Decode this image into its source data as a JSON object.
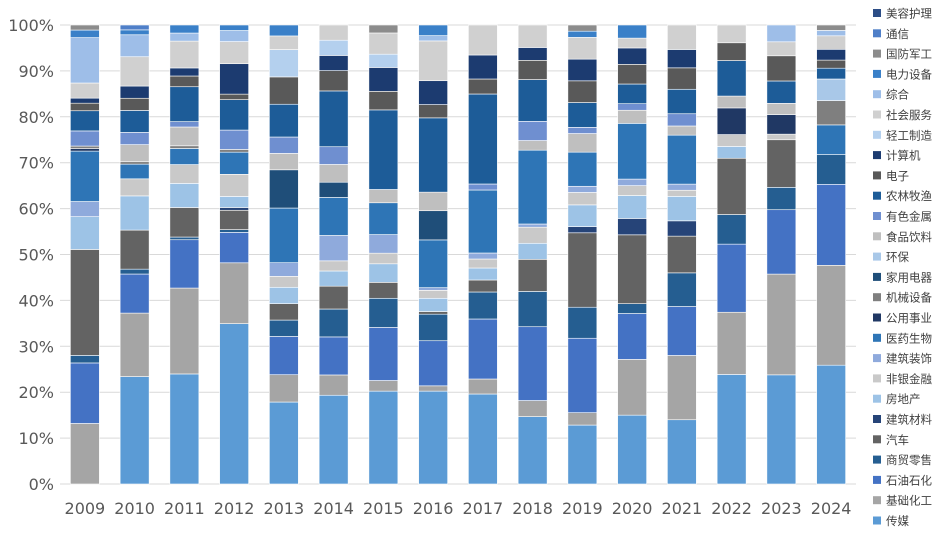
{
  "chart_data": {
    "type": "bar",
    "stacked": true,
    "percent": true,
    "categories": [
      "2009",
      "2010",
      "2011",
      "2012",
      "2013",
      "2014",
      "2015",
      "2016",
      "2017",
      "2018",
      "2019",
      "2020",
      "2021",
      "2022",
      "2023",
      "2024"
    ],
    "ylim": [
      0,
      100
    ],
    "yticks": [
      "0%",
      "10%",
      "20%",
      "30%",
      "40%",
      "50%",
      "60%",
      "70%",
      "80%",
      "90%",
      "100%"
    ],
    "legend_position": "right",
    "series": [
      {
        "name": "传媒",
        "color": "#5b9bd5",
        "values": [
          0,
          22,
          20.5,
          29,
          15,
          17.5,
          17.5,
          17.5,
          15,
          10.5,
          9.5,
          10.5,
          10.5,
          18.5,
          19.5,
          22
        ]
      },
      {
        "name": "基础化工",
        "color": "#a5a5a5",
        "values": [
          12,
          13,
          16,
          11,
          5,
          4,
          2,
          1,
          2.5,
          2.5,
          2,
          8.5,
          10.5,
          10.5,
          18,
          18.5
        ]
      },
      {
        "name": "石油石化",
        "color": "#4472c4",
        "values": [
          12,
          8,
          9,
          5.5,
          7,
          7.5,
          10,
          8.5,
          10,
          11.5,
          12,
          7,
          8,
          11.5,
          11.5,
          15
        ]
      },
      {
        "name": "商贸零售",
        "color": "#255e91",
        "values": [
          1.5,
          1,
          0.5,
          0.5,
          3,
          5.5,
          5.5,
          5,
          4.5,
          5.5,
          5,
          1.5,
          5.5,
          5,
          4,
          5.5
        ]
      },
      {
        "name": "汽车",
        "color": "#636363",
        "values": [
          21,
          8,
          5.5,
          3.5,
          3,
          4.5,
          3,
          0.5,
          2,
          5,
          12,
          10.5,
          6,
          9.5,
          8.5,
          0
        ]
      },
      {
        "name": "建筑材料",
        "color": "#264478",
        "values": [
          0,
          0,
          0,
          0.5,
          0,
          0,
          0,
          0,
          0,
          0,
          1,
          2.5,
          2.5,
          0,
          0,
          0
        ]
      },
      {
        "name": "房地产",
        "color": "#9dc3e6",
        "values": [
          6.5,
          7,
          4.5,
          2,
          3,
          3,
          3.5,
          2.5,
          2,
          2.5,
          3.5,
          3.5,
          4,
          2,
          0,
          0
        ]
      },
      {
        "name": "非银金融",
        "color": "#c9c9c9",
        "values": [
          0,
          3.5,
          3.5,
          4,
          2,
          2,
          2,
          1.5,
          1.5,
          2.5,
          2,
          1.5,
          1,
          2,
          1,
          0
        ]
      },
      {
        "name": "建筑装饰",
        "color": "#8faadc",
        "values": [
          3,
          0,
          0,
          0,
          2.5,
          5,
          3.5,
          0.5,
          1,
          0.5,
          1,
          1,
          1,
          0,
          0,
          0
        ]
      },
      {
        "name": "医药生物",
        "color": "#2e75b6",
        "values": [
          10,
          3,
          3,
          4,
          10,
          7.5,
          6,
          9,
          10.5,
          11.5,
          5.5,
          8.5,
          8,
          0,
          0,
          5.5
        ]
      },
      {
        "name": "公用事业",
        "color": "#203864",
        "values": [
          0.5,
          0,
          0,
          0,
          0,
          0,
          0,
          0,
          0,
          0,
          0,
          0,
          0,
          4.5,
          3.5,
          0
        ]
      },
      {
        "name": "机械设备",
        "color": "#7f7f7f",
        "values": [
          0.5,
          0.5,
          0.5,
          0.5,
          0,
          0,
          0,
          0,
          0,
          0,
          0,
          0,
          0,
          0,
          0,
          4.5
        ]
      },
      {
        "name": "家用电器",
        "color": "#1f4e79",
        "values": [
          0,
          0,
          0,
          0,
          7,
          3,
          0,
          5.5,
          0,
          0,
          0,
          0,
          0,
          0,
          0,
          0
        ]
      },
      {
        "name": "环保",
        "color": "#a9c8e8",
        "values": [
          0,
          0,
          0,
          0,
          0,
          0,
          0,
          0,
          0,
          0,
          0,
          0,
          0,
          0,
          0,
          4
        ]
      },
      {
        "name": "食品饮料",
        "color": "#bfbfbf",
        "values": [
          0,
          3.5,
          3.5,
          0,
          3,
          3.5,
          2.5,
          3.5,
          0,
          1.5,
          3,
          2,
          1.5,
          2,
          2,
          0
        ]
      },
      {
        "name": "有色金属",
        "color": "#6f8fd0",
        "values": [
          3,
          2.5,
          1,
          3.5,
          3,
          3.5,
          0,
          0,
          1,
          3,
          1,
          1,
          2,
          0,
          0,
          0
        ]
      },
      {
        "name": "农林牧渔",
        "color": "#1d5c98",
        "values": [
          4,
          4.5,
          6.5,
          5.5,
          6,
          11,
          15,
          14,
          15,
          6.5,
          4,
          3,
          4,
          6,
          4,
          2
        ]
      },
      {
        "name": "电子",
        "color": "#595959",
        "values": [
          1.5,
          2.5,
          2,
          1,
          5,
          4,
          3.5,
          2.5,
          2.5,
          3,
          3.5,
          3,
          3.5,
          3,
          4.5,
          1.5
        ]
      },
      {
        "name": "计算机",
        "color": "#1c3b70",
        "values": [
          1,
          2.5,
          1.5,
          5.5,
          0,
          3,
          4.5,
          4.5,
          4,
          2,
          3.5,
          2.5,
          3,
          0,
          0,
          2
        ]
      },
      {
        "name": "轻工制造",
        "color": "#b4d0ee",
        "values": [
          0,
          0,
          0,
          0,
          5,
          3,
          2.5,
          0,
          0,
          0,
          0,
          0,
          0,
          0,
          0,
          0
        ]
      },
      {
        "name": "社会服务",
        "color": "#d0d0d0",
        "values": [
          3,
          6,
          5,
          4,
          2.5,
          3,
          4,
          7.5,
          5,
          3.5,
          3.5,
          1.5,
          4,
          3,
          2.5,
          2.5
        ]
      },
      {
        "name": "综合",
        "color": "#9ebee8",
        "values": [
          9,
          4.5,
          1.5,
          2,
          0,
          0,
          0,
          1,
          0,
          0,
          0,
          0,
          0,
          0,
          3,
          1
        ]
      },
      {
        "name": "电力设备",
        "color": "#3a80c8",
        "values": [
          1.5,
          1,
          1.5,
          1,
          2,
          0,
          0,
          2,
          0,
          0,
          1,
          2,
          0,
          0,
          0,
          0
        ]
      },
      {
        "name": "国防军工",
        "color": "#8c8c8c",
        "values": [
          1,
          0,
          0,
          0,
          0,
          0,
          1.5,
          0,
          0,
          0,
          1,
          0,
          0,
          0,
          0,
          1
        ]
      },
      {
        "name": "通信",
        "color": "#4f7fc8",
        "values": [
          0,
          1,
          0,
          0,
          0,
          0,
          0,
          0,
          0,
          0,
          0,
          0,
          0,
          0,
          0,
          0
        ]
      },
      {
        "name": "美容护理",
        "color": "#2c4d86",
        "values": [
          0,
          0,
          0,
          0,
          0,
          0,
          0,
          0,
          0,
          0,
          0,
          0,
          0,
          0,
          0,
          0
        ]
      }
    ],
    "legend_order": [
      "美容护理",
      "通信",
      "国防军工",
      "电力设备",
      "综合",
      "社会服务",
      "轻工制造",
      "计算机",
      "电子",
      "农林牧渔",
      "有色金属",
      "食品饮料",
      "环保",
      "家用电器",
      "机械设备",
      "公用事业",
      "医药生物",
      "建筑装饰",
      "非银金融",
      "房地产",
      "建筑材料",
      "汽车",
      "商贸零售",
      "石油石化",
      "基础化工",
      "传媒"
    ]
  }
}
